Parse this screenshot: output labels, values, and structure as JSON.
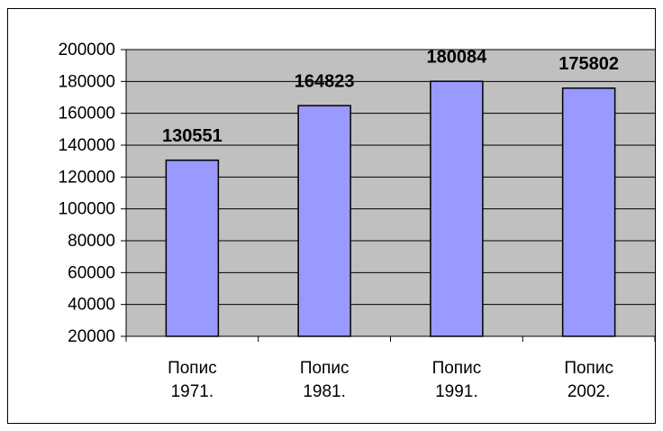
{
  "chart_data": {
    "type": "bar",
    "categories": [
      "Попис 1971.",
      "Попис 1981.",
      "Попис 1991.",
      "Попис 2002."
    ],
    "values": [
      130551,
      164823,
      180084,
      175802
    ],
    "color": "#9999ff",
    "ylim": [
      20000,
      200000
    ],
    "yticks": [
      20000,
      40000,
      60000,
      80000,
      100000,
      120000,
      140000,
      160000,
      180000,
      200000
    ],
    "grid": true
  }
}
